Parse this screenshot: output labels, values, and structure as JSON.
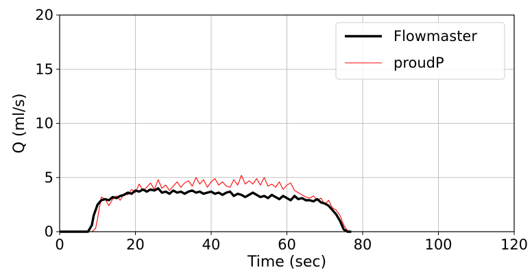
{
  "chart_data": {
    "type": "line",
    "title": "",
    "xlabel": "Time (sec)",
    "ylabel": "Q (ml/s)",
    "xlim": [
      0,
      120
    ],
    "ylim": [
      0,
      20
    ],
    "xticks": [
      0,
      20,
      40,
      60,
      80,
      100,
      120
    ],
    "yticks": [
      0,
      5,
      10,
      15,
      20
    ],
    "grid": true,
    "legend_position": "top-right",
    "series": [
      {
        "name": "Flowmaster",
        "color": "#000000",
        "style": "thick",
        "x": [
          0,
          7.5,
          8.5,
          9,
          10,
          11,
          12,
          13,
          14,
          15,
          16,
          17,
          18,
          19,
          20,
          21,
          22,
          23,
          24,
          25,
          26,
          27,
          28,
          29,
          30,
          31,
          32,
          33,
          34,
          35,
          36,
          37,
          38,
          39,
          40,
          41,
          42,
          43,
          44,
          45,
          46,
          47,
          48,
          49,
          50,
          51,
          52,
          53,
          54,
          55,
          56,
          57,
          58,
          59,
          60,
          61,
          62,
          63,
          64,
          65,
          66,
          67,
          68,
          69,
          70,
          71,
          72,
          73,
          74,
          75,
          76,
          77
        ],
        "values": [
          0,
          0,
          0.6,
          1.5,
          2.5,
          2.9,
          3.0,
          2.9,
          3.2,
          3.1,
          3.3,
          3.4,
          3.6,
          3.5,
          3.8,
          3.7,
          3.9,
          3.7,
          3.9,
          3.8,
          4.0,
          3.6,
          3.7,
          3.5,
          3.8,
          3.6,
          3.7,
          3.5,
          3.7,
          3.8,
          3.6,
          3.7,
          3.5,
          3.6,
          3.7,
          3.5,
          3.6,
          3.4,
          3.6,
          3.7,
          3.3,
          3.5,
          3.4,
          3.2,
          3.4,
          3.6,
          3.4,
          3.2,
          3.3,
          3.1,
          3.4,
          3.2,
          3.0,
          3.3,
          3.1,
          2.9,
          3.3,
          3.0,
          3.1,
          2.9,
          2.9,
          2.8,
          3.0,
          2.7,
          2.6,
          2.4,
          2.0,
          1.6,
          1.0,
          0.2,
          0,
          0
        ]
      },
      {
        "name": "proudP",
        "color": "#ff0000",
        "style": "thin",
        "x": [
          0,
          8.5,
          9.5,
          10,
          10.5,
          11,
          12,
          13,
          14,
          15,
          16,
          17,
          18,
          19,
          20,
          21,
          22,
          23,
          24,
          25,
          26,
          27,
          28,
          29,
          30,
          31,
          32,
          33,
          34,
          35,
          36,
          37,
          38,
          39,
          40,
          41,
          42,
          43,
          44,
          45,
          46,
          47,
          48,
          49,
          50,
          51,
          52,
          53,
          54,
          55,
          56,
          57,
          58,
          59,
          60,
          61,
          62,
          63,
          64,
          65,
          66,
          67,
          68,
          69,
          70,
          71,
          72,
          73,
          74,
          75,
          76,
          77,
          78
        ],
        "values": [
          0,
          0,
          0.3,
          1.2,
          2.2,
          3.2,
          3.0,
          2.4,
          3.0,
          3.3,
          2.9,
          3.5,
          3.4,
          3.9,
          3.6,
          4.4,
          3.8,
          4.1,
          4.5,
          3.9,
          4.8,
          4.0,
          4.3,
          3.8,
          4.2,
          4.6,
          4.1,
          4.5,
          4.7,
          4.2,
          5.0,
          4.4,
          4.8,
          4.1,
          4.6,
          4.9,
          4.3,
          4.6,
          4.2,
          4.1,
          4.8,
          4.3,
          5.2,
          4.4,
          4.7,
          4.4,
          4.9,
          4.3,
          5.0,
          4.2,
          4.4,
          4.1,
          4.6,
          3.9,
          4.3,
          4.5,
          3.8,
          3.6,
          3.4,
          3.2,
          3.1,
          3.3,
          2.9,
          3.1,
          2.5,
          2.9,
          2.2,
          2.0,
          1.5,
          0.6,
          0.1,
          0,
          0
        ]
      }
    ]
  }
}
